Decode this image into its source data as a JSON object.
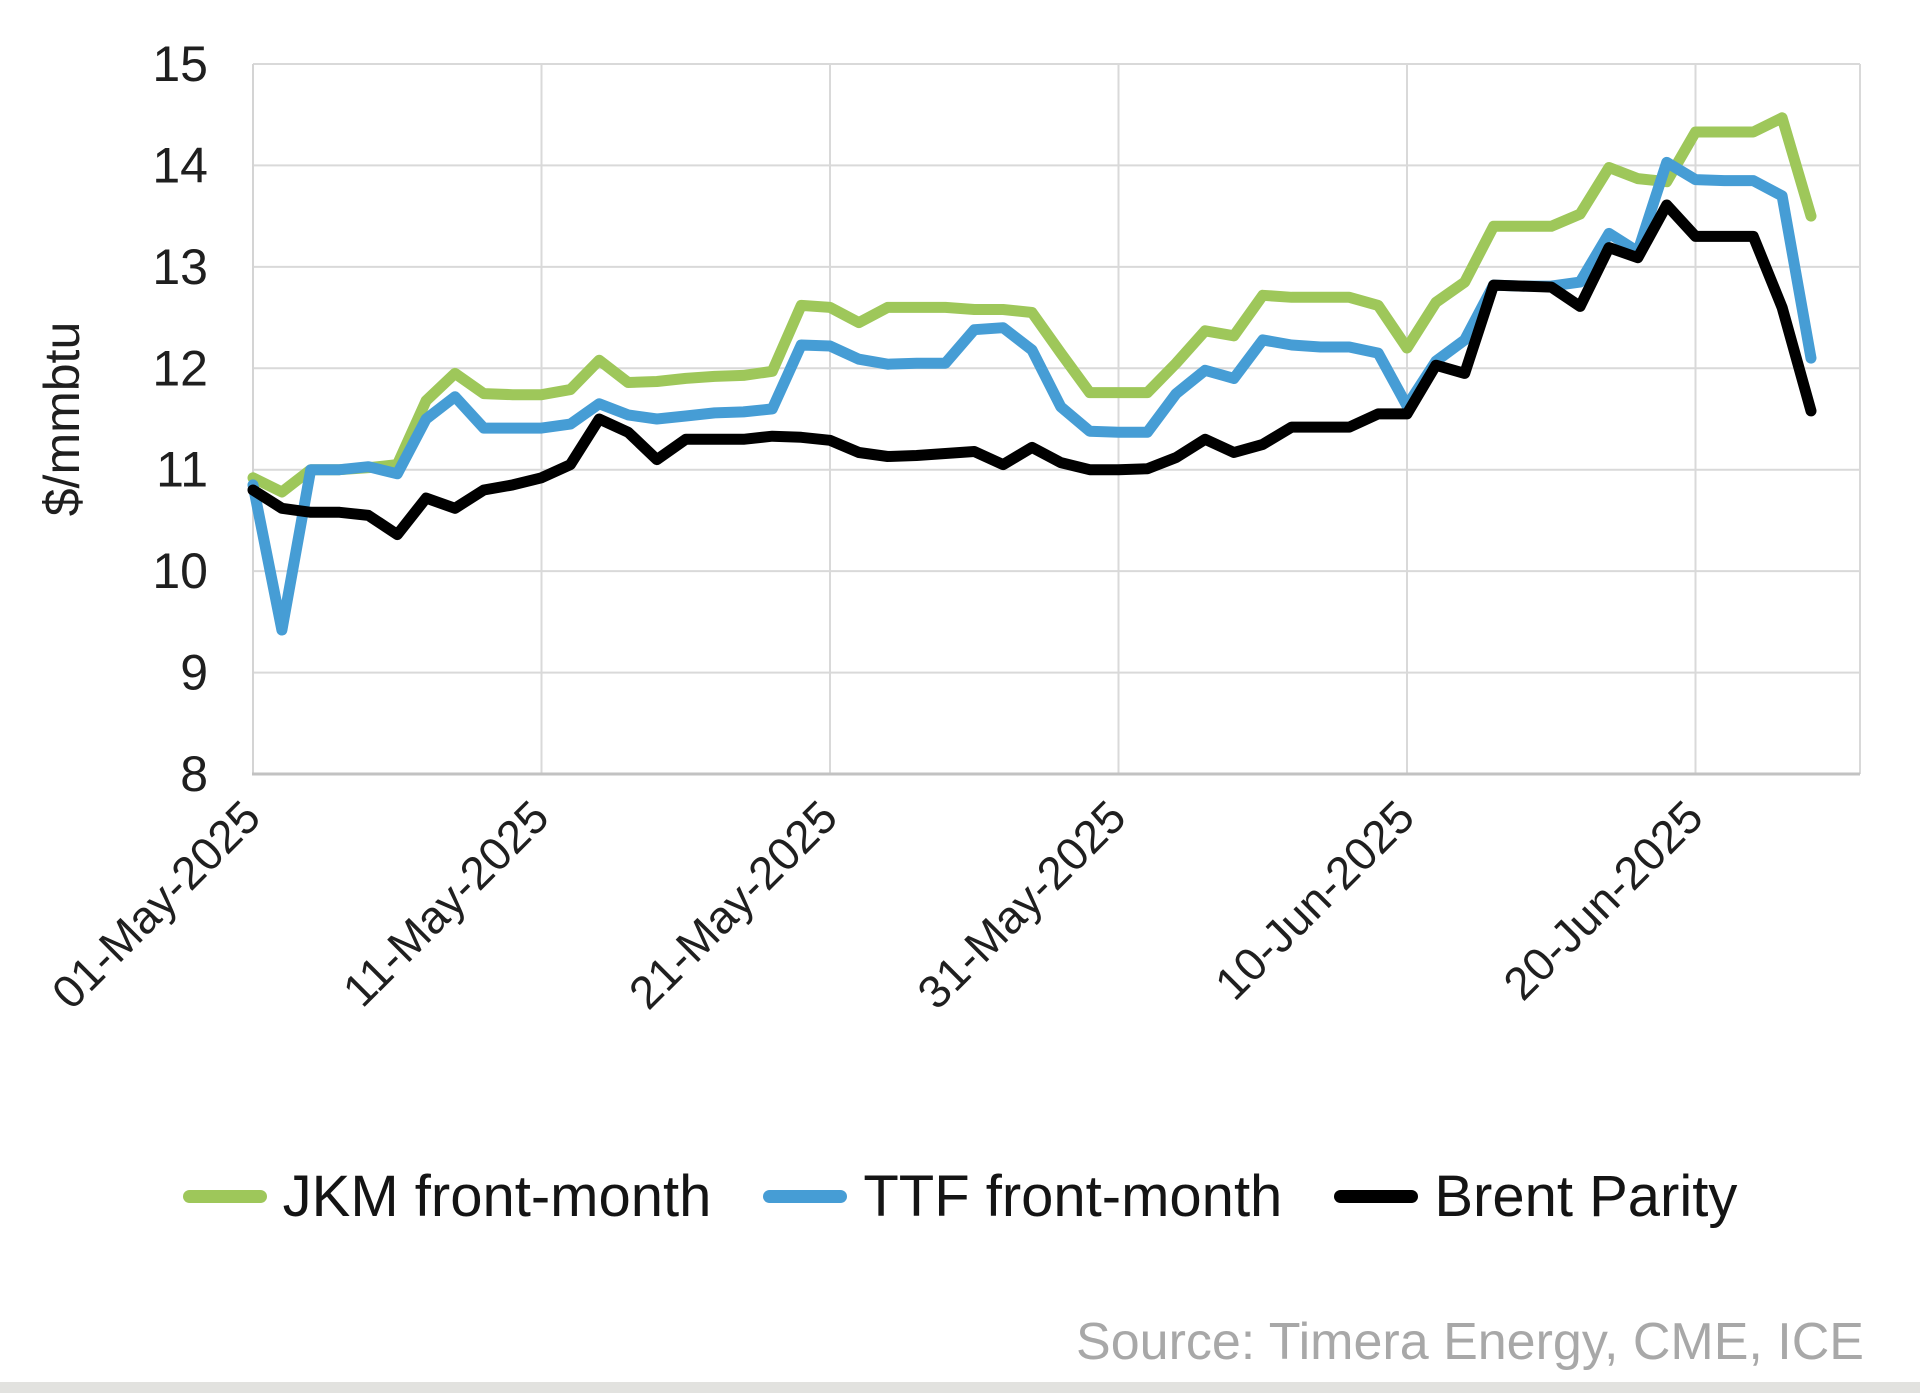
{
  "chart_data": {
    "type": "line",
    "title": "",
    "xlabel": "",
    "ylabel": "$/mmbtu",
    "ylim": [
      8,
      15
    ],
    "y_ticks": [
      8,
      9,
      10,
      11,
      12,
      13,
      14,
      15
    ],
    "grid": true,
    "legend_position": "bottom",
    "x_start_date": "01-May-2025",
    "x_end_date": "24-Jun-2025",
    "x_step_days": 1,
    "n_points": 55,
    "x_domain_days": [
      0,
      55.7
    ],
    "x_ticks": [
      {
        "day": 0,
        "label": "01-May-2025"
      },
      {
        "day": 10,
        "label": "11-May-2025"
      },
      {
        "day": 20,
        "label": "21-May-2025"
      },
      {
        "day": 30,
        "label": "31-May-2025"
      },
      {
        "day": 40,
        "label": "10-Jun-2025"
      },
      {
        "day": 50,
        "label": "20-Jun-2025"
      }
    ],
    "series": [
      {
        "name": "JKM front-month",
        "color": "#9EC75A",
        "values": [
          10.92,
          10.78,
          11.0,
          11.0,
          11.02,
          11.05,
          11.68,
          11.95,
          11.75,
          11.74,
          11.74,
          11.79,
          12.08,
          11.86,
          11.87,
          11.9,
          11.92,
          11.93,
          11.97,
          12.62,
          12.6,
          12.45,
          12.6,
          12.6,
          12.6,
          12.58,
          12.58,
          12.55,
          12.15,
          11.76,
          11.76,
          11.76,
          12.05,
          12.37,
          12.32,
          12.72,
          12.7,
          12.7,
          12.7,
          12.62,
          12.2,
          12.65,
          12.85,
          13.4,
          13.4,
          13.4,
          13.52,
          13.98,
          13.87,
          13.84,
          14.33,
          14.33,
          14.33,
          14.47,
          13.5
        ]
      },
      {
        "name": "TTF front-month",
        "color": "#469DD5",
        "values": [
          10.85,
          9.42,
          11.0,
          11.0,
          11.03,
          10.96,
          11.5,
          11.72,
          11.41,
          11.41,
          11.41,
          11.45,
          11.65,
          11.54,
          11.5,
          11.53,
          11.56,
          11.57,
          11.6,
          12.23,
          12.22,
          12.09,
          12.04,
          12.05,
          12.05,
          12.38,
          12.4,
          12.18,
          11.62,
          11.38,
          11.37,
          11.37,
          11.75,
          11.98,
          11.9,
          12.28,
          12.23,
          12.21,
          12.21,
          12.15,
          11.63,
          12.07,
          12.28,
          12.82,
          12.81,
          12.81,
          12.85,
          13.33,
          13.15,
          14.03,
          13.86,
          13.85,
          13.85,
          13.7,
          12.1
        ]
      },
      {
        "name": "Brent Parity",
        "color": "#000000",
        "values": [
          10.8,
          10.62,
          10.58,
          10.58,
          10.55,
          10.36,
          10.72,
          10.62,
          10.8,
          10.85,
          10.92,
          11.05,
          11.5,
          11.37,
          11.1,
          11.3,
          11.3,
          11.3,
          11.33,
          11.32,
          11.29,
          11.17,
          11.13,
          11.14,
          11.16,
          11.18,
          11.05,
          11.22,
          11.07,
          11.0,
          11.0,
          11.01,
          11.12,
          11.3,
          11.17,
          11.25,
          11.42,
          11.42,
          11.42,
          11.55,
          11.55,
          12.03,
          11.95,
          12.82,
          12.81,
          12.8,
          12.61,
          13.19,
          13.09,
          13.61,
          13.3,
          13.3,
          13.3,
          12.6,
          11.58
        ]
      }
    ],
    "style_colors": {
      "gridline": "#d9d9d9",
      "axis_line": "#c2c2c2",
      "tick_text": "#1f1f1f",
      "source_text": "#a8a8a8"
    }
  },
  "source_note": "Source: Timera Energy, CME, ICE"
}
